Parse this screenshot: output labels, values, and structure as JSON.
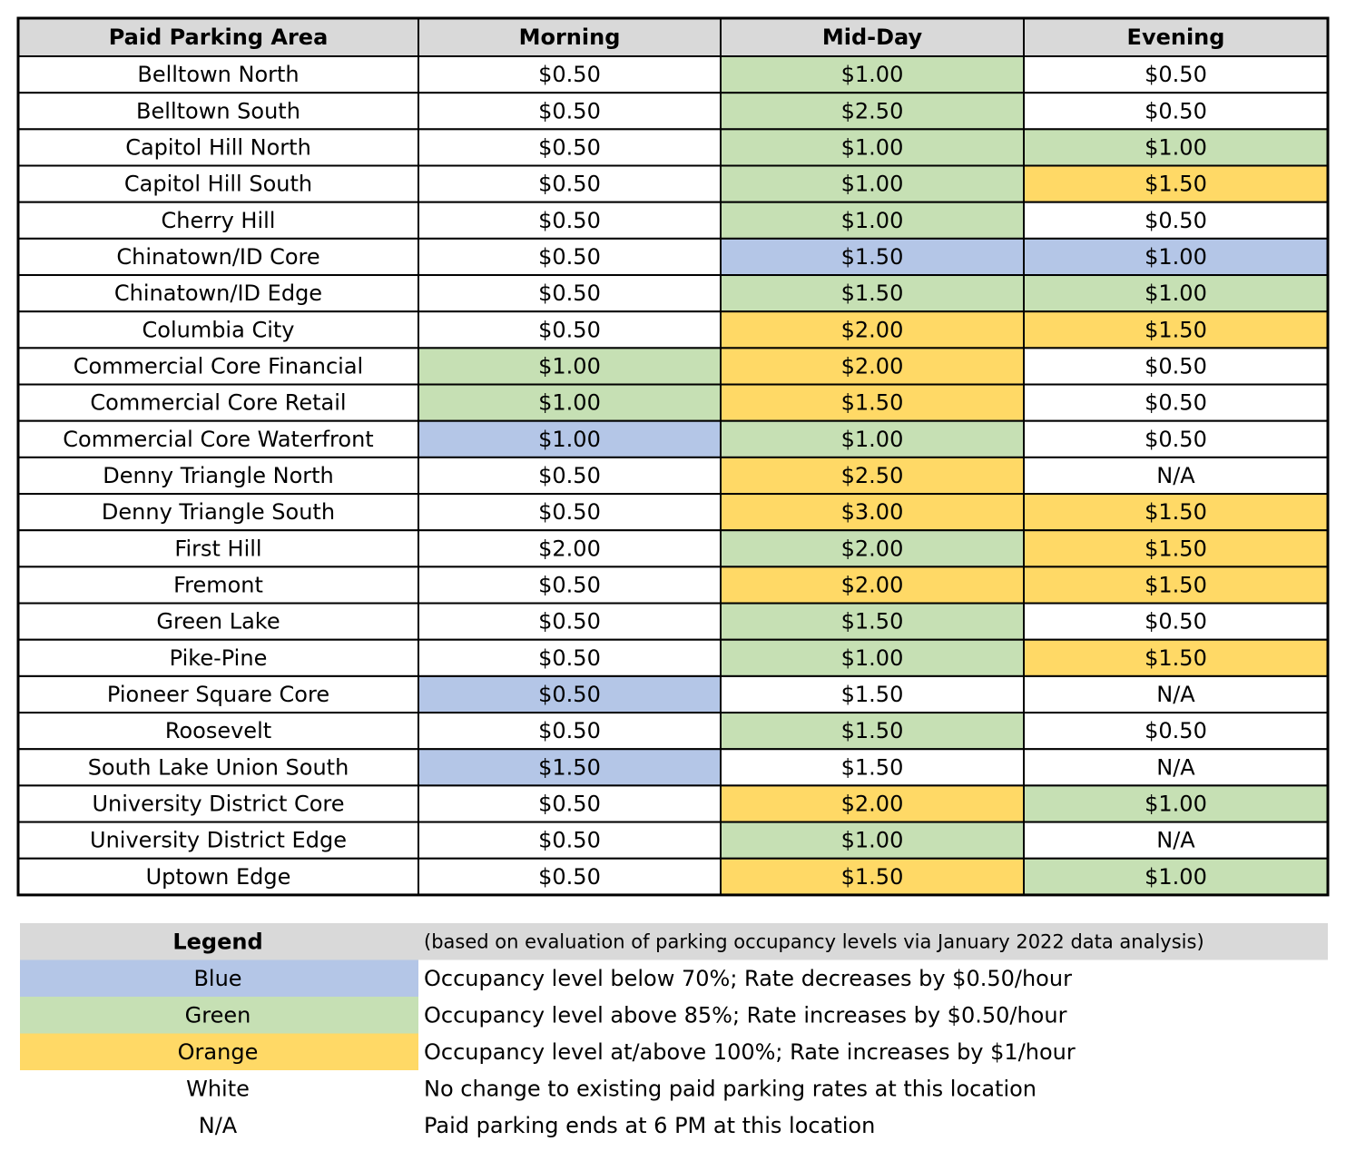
{
  "table": {
    "header": [
      "Paid Parking Area",
      "Morning",
      "Mid-Day",
      "Evening"
    ],
    "header_fill": "#d9d9d9",
    "rows": [
      {
        "area": "Belltown North",
        "rates": [
          "$0.50",
          "$1.00",
          "$0.50"
        ],
        "fills": [
          "#ffffff",
          "#c6e0b4",
          "#ffffff"
        ]
      },
      {
        "area": "Belltown South",
        "rates": [
          "$0.50",
          "$2.50",
          "$0.50"
        ],
        "fills": [
          "#ffffff",
          "#c6e0b4",
          "#ffffff"
        ]
      },
      {
        "area": "Capitol Hill North",
        "rates": [
          "$0.50",
          "$1.00",
          "$1.00"
        ],
        "fills": [
          "#ffffff",
          "#c6e0b4",
          "#c6e0b4"
        ]
      },
      {
        "area": "Capitol Hill South",
        "rates": [
          "$0.50",
          "$1.00",
          "$1.50"
        ],
        "fills": [
          "#ffffff",
          "#c6e0b4",
          "#ffd966"
        ]
      },
      {
        "area": "Cherry Hill",
        "rates": [
          "$0.50",
          "$1.00",
          "$0.50"
        ],
        "fills": [
          "#ffffff",
          "#c6e0b4",
          "#ffffff"
        ]
      },
      {
        "area": "Chinatown/ID Core",
        "rates": [
          "$0.50",
          "$1.50",
          "$1.00"
        ],
        "fills": [
          "#ffffff",
          "#b4c6e7",
          "#b4c6e7"
        ]
      },
      {
        "area": "Chinatown/ID Edge",
        "rates": [
          "$0.50",
          "$1.50",
          "$1.00"
        ],
        "fills": [
          "#ffffff",
          "#c6e0b4",
          "#c6e0b4"
        ]
      },
      {
        "area": "Columbia City",
        "rates": [
          "$0.50",
          "$2.00",
          "$1.50"
        ],
        "fills": [
          "#ffffff",
          "#ffd966",
          "#ffd966"
        ]
      },
      {
        "area": "Commercial Core Financial",
        "rates": [
          "$1.00",
          "$2.00",
          "$0.50"
        ],
        "fills": [
          "#c6e0b4",
          "#ffd966",
          "#ffffff"
        ]
      },
      {
        "area": "Commercial Core Retail",
        "rates": [
          "$1.00",
          "$1.50",
          "$0.50"
        ],
        "fills": [
          "#c6e0b4",
          "#ffd966",
          "#ffffff"
        ]
      },
      {
        "area": "Commercial Core Waterfront",
        "rates": [
          "$1.00",
          "$1.00",
          "$0.50"
        ],
        "fills": [
          "#b4c6e7",
          "#c6e0b4",
          "#ffffff"
        ]
      },
      {
        "area": "Denny Triangle North",
        "rates": [
          "$0.50",
          "$2.50",
          "N/A"
        ],
        "fills": [
          "#ffffff",
          "#ffd966",
          "#ffffff"
        ]
      },
      {
        "area": "Denny Triangle South",
        "rates": [
          "$0.50",
          "$3.00",
          "$1.50"
        ],
        "fills": [
          "#ffffff",
          "#ffd966",
          "#ffd966"
        ]
      },
      {
        "area": "First Hill",
        "rates": [
          "$2.00",
          "$2.00",
          "$1.50"
        ],
        "fills": [
          "#ffffff",
          "#c6e0b4",
          "#ffd966"
        ]
      },
      {
        "area": "Fremont",
        "rates": [
          "$0.50",
          "$2.00",
          "$1.50"
        ],
        "fills": [
          "#ffffff",
          "#ffd966",
          "#ffd966"
        ]
      },
      {
        "area": "Green Lake",
        "rates": [
          "$0.50",
          "$1.50",
          "$0.50"
        ],
        "fills": [
          "#ffffff",
          "#c6e0b4",
          "#ffffff"
        ]
      },
      {
        "area": "Pike-Pine",
        "rates": [
          "$0.50",
          "$1.00",
          "$1.50"
        ],
        "fills": [
          "#ffffff",
          "#c6e0b4",
          "#ffd966"
        ]
      },
      {
        "area": "Pioneer Square Core",
        "rates": [
          "$0.50",
          "$1.50",
          "N/A"
        ],
        "fills": [
          "#b4c6e7",
          "#ffffff",
          "#ffffff"
        ]
      },
      {
        "area": "Roosevelt",
        "rates": [
          "$0.50",
          "$1.50",
          "$0.50"
        ],
        "fills": [
          "#ffffff",
          "#c6e0b4",
          "#ffffff"
        ]
      },
      {
        "area": "South Lake Union South",
        "rates": [
          "$1.50",
          "$1.50",
          "N/A"
        ],
        "fills": [
          "#b4c6e7",
          "#ffffff",
          "#ffffff"
        ]
      },
      {
        "area": "University District Core",
        "rates": [
          "$0.50",
          "$2.00",
          "$1.00"
        ],
        "fills": [
          "#ffffff",
          "#ffd966",
          "#c6e0b4"
        ]
      },
      {
        "area": "University District Edge",
        "rates": [
          "$0.50",
          "$1.00",
          "N/A"
        ],
        "fills": [
          "#ffffff",
          "#c6e0b4",
          "#ffffff"
        ]
      },
      {
        "area": "Uptown Edge",
        "rates": [
          "$0.50",
          "$1.50",
          "$1.00"
        ],
        "fills": [
          "#ffffff",
          "#ffd966",
          "#c6e0b4"
        ]
      }
    ]
  },
  "legend": {
    "title": "Legend",
    "note": "(based on evaluation of parking occupancy levels via January 2022 data analysis)",
    "header_fill": "#d9d9d9",
    "items": [
      {
        "label": "Blue",
        "description": "Occupancy level below 70%; Rate decreases by $0.50/hour",
        "fill": "#b4c6e7"
      },
      {
        "label": "Green",
        "description": "Occupancy level above 85%; Rate increases by $0.50/hour",
        "fill": "#c6e0b4"
      },
      {
        "label": "Orange",
        "description": "Occupancy level at/above 100%; Rate increases by $1/hour",
        "fill": "#ffd966"
      },
      {
        "label": "White",
        "description": "No change to existing paid parking rates at this location",
        "fill": "#ffffff"
      },
      {
        "label": "N/A",
        "description": "Paid parking ends at 6 PM at this location",
        "fill": "#ffffff"
      }
    ]
  }
}
